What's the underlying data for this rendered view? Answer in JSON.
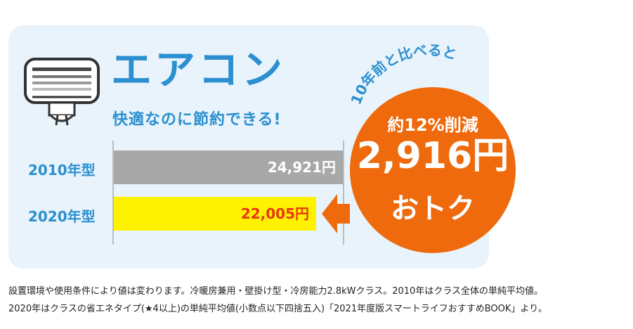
{
  "header": {
    "title": "エアコン",
    "subtitle": "快適なのに節約できる!"
  },
  "callout": {
    "arc_text": "10年前と比べると",
    "line1": "約12%削減",
    "line2": "2,916円",
    "line3": "おトク"
  },
  "chart_data": {
    "type": "bar",
    "orientation": "horizontal",
    "categories": [
      "2010年型",
      "2020年型"
    ],
    "values": [
      24921,
      22005
    ],
    "value_labels": [
      "24,921円",
      "22,005円"
    ],
    "xlim": [
      0,
      24921
    ],
    "colors": {
      "2010年型": "#a8a8a8",
      "2020年型": "#fff200"
    },
    "value_label_colors": {
      "2010年型": "#ffffff",
      "2020年型": "#e8380d"
    }
  },
  "colors": {
    "accent": "#2b8fd0",
    "callout": "#ee6a0c",
    "panel": "#e8f3fb"
  },
  "footnote": {
    "line1": "設置環境や使用条件により値は変わります。冷暖房兼用・壁掛け型・冷房能力2.8kWクラス。2010年はクラス全体の単純平均値。",
    "line2": "2020年はクラスの省エネタイプ(★4以上)の単純平均値(小数点以下四捨五入)「2021年度版スマートライフおすすめBOOK」より。"
  },
  "icons": [
    "air-conditioner-icon",
    "arrow-left-icon"
  ]
}
